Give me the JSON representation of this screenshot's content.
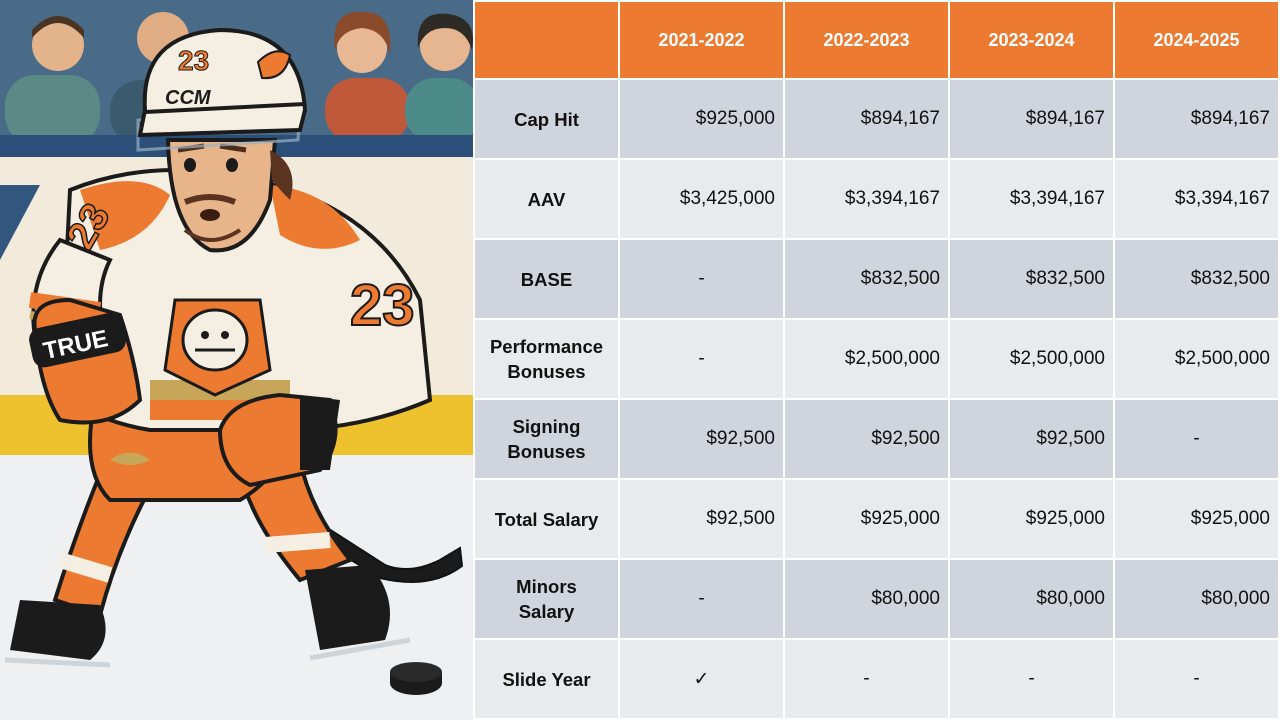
{
  "illustration": {
    "jersey_number": "23",
    "helmet_brand": "CCM",
    "glove_brand": "TRUE",
    "colors": {
      "orange": "#ed7a31",
      "gold": "#c7a65a",
      "cream": "#f4efe2",
      "black": "#1b1b1b",
      "ice": "#eef0f2",
      "board_yellow": "#eec12f",
      "crowd_blue": "#4a6b86"
    }
  },
  "table": {
    "corner": "",
    "seasons": [
      "2021-2022",
      "2022-2023",
      "2023-2024",
      "2024-2025"
    ],
    "rows": [
      {
        "label": "Cap Hit",
        "values": [
          "$925,000",
          "$894,167",
          "$894,167",
          "$894,167"
        ]
      },
      {
        "label": "AAV",
        "values": [
          "$3,425,000",
          "$3,394,167",
          "$3,394,167",
          "$3,394,167"
        ]
      },
      {
        "label": "BASE",
        "values": [
          "-",
          "$832,500",
          "$832,500",
          "$832,500"
        ]
      },
      {
        "label": "Performance Bonuses",
        "values": [
          "-",
          "$2,500,000",
          "$2,500,000",
          "$2,500,000"
        ]
      },
      {
        "label": "Signing Bonuses",
        "values": [
          "$92,500",
          "$92,500",
          "$92,500",
          "-"
        ]
      },
      {
        "label": "Total Salary",
        "values": [
          "$92,500",
          "$925,000",
          "$925,000",
          "$925,000"
        ]
      },
      {
        "label": "Minors Salary",
        "values": [
          "-",
          "$80,000",
          "$80,000",
          "$80,000"
        ]
      },
      {
        "label": "Slide Year",
        "values": [
          "✓",
          "-",
          "-",
          "-"
        ]
      }
    ]
  }
}
